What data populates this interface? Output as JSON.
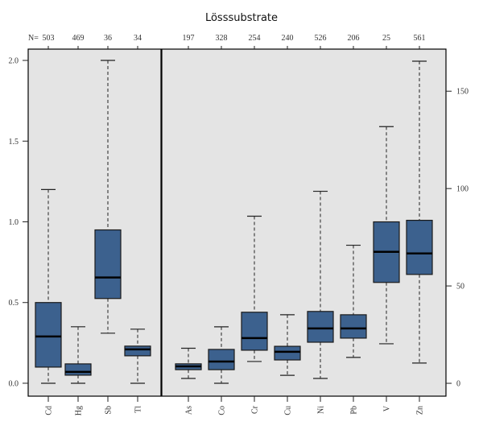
{
  "chart_data": {
    "type": "boxplot",
    "title": "Lösssubstrate",
    "n_prefix": "N=",
    "colors": {
      "panel_bg": "#e4e4e4",
      "box_fill": "#3c618e",
      "box_stroke": "#1a1a1a",
      "median": "#000000",
      "whisker": "#222222",
      "frame": "#000000"
    },
    "panels": [
      {
        "name": "left",
        "axis": "left",
        "ylim": [
          -0.08,
          2.07
        ],
        "yticks": [
          0.0,
          0.5,
          1.0,
          1.5,
          2.0
        ],
        "ytick_labels": [
          "0.0",
          "0.5",
          "1.0",
          "1.5",
          "2.0"
        ],
        "boxes": [
          {
            "label": "Cd",
            "n": "503",
            "whisker_low": 0.0,
            "q1": 0.1,
            "median": 0.29,
            "q3": 0.5,
            "whisker_high": 1.2
          },
          {
            "label": "Hg",
            "n": "469",
            "whisker_low": 0.0,
            "q1": 0.05,
            "median": 0.07,
            "q3": 0.12,
            "whisker_high": 0.35
          },
          {
            "label": "Sb",
            "n": "36",
            "whisker_low": 0.31,
            "q1": 0.525,
            "median": 0.655,
            "q3": 0.95,
            "whisker_high": 2.0
          },
          {
            "label": "Tl",
            "n": "34",
            "whisker_low": 0.0,
            "q1": 0.17,
            "median": 0.21,
            "q3": 0.23,
            "whisker_high": 0.335
          }
        ]
      },
      {
        "name": "right",
        "axis": "right",
        "ylim": [
          -6.6,
          171.6
        ],
        "yticks": [
          0,
          50,
          100,
          150
        ],
        "ytick_labels": [
          "0",
          "50",
          "100",
          "150"
        ],
        "boxes": [
          {
            "label": "As",
            "n": "197",
            "whisker_low": 2.5,
            "q1": 7.0,
            "median": 8.7,
            "q3": 10.0,
            "whisker_high": 18.0
          },
          {
            "label": "Co",
            "n": "328",
            "whisker_low": 0.0,
            "q1": 7.0,
            "median": 11.2,
            "q3": 17.4,
            "whisker_high": 29.0
          },
          {
            "label": "Cr",
            "n": "254",
            "whisker_low": 11.2,
            "q1": 17.0,
            "median": 23.2,
            "q3": 36.5,
            "whisker_high": 85.8
          },
          {
            "label": "Cu",
            "n": "240",
            "whisker_low": 4.1,
            "q1": 12.0,
            "median": 16.2,
            "q3": 19.0,
            "whisker_high": 35.2
          },
          {
            "label": "Ni",
            "n": "526",
            "whisker_low": 2.5,
            "q1": 21.1,
            "median": 28.2,
            "q3": 36.9,
            "whisker_high": 98.6
          },
          {
            "label": "Pb",
            "n": "206",
            "whisker_low": 13.3,
            "q1": 23.2,
            "median": 28.2,
            "q3": 35.2,
            "whisker_high": 70.9
          },
          {
            "label": "V",
            "n": "25",
            "whisker_low": 20.3,
            "q1": 51.8,
            "median": 67.5,
            "q3": 82.9,
            "whisker_high": 131.8
          },
          {
            "label": "Zn",
            "n": "561",
            "whisker_low": 10.4,
            "q1": 55.9,
            "median": 66.7,
            "q3": 83.7,
            "whisker_high": 165.4
          }
        ]
      }
    ],
    "xlabel": "",
    "ylabel_left": "",
    "ylabel_right": "",
    "grid": false,
    "legend": "none"
  }
}
